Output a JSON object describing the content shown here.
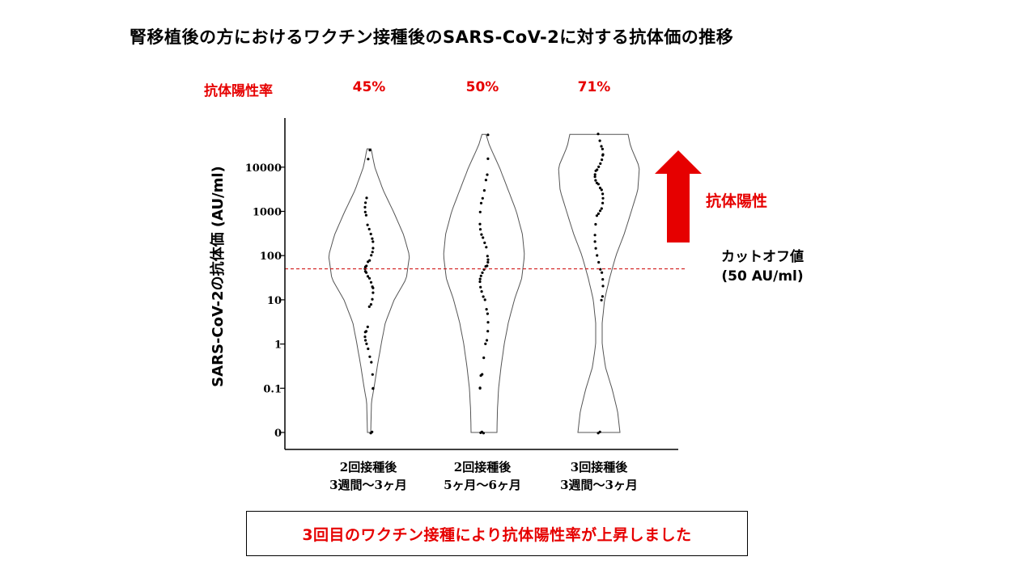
{
  "title": "腎移植後の方におけるワクチン接種後のSARS-CoV-2に対する抗体価の推移",
  "positivity_rate_label": "抗体陽性率",
  "positive_label": "抗体陽性",
  "cutoff_label_line1": "カットオフ値",
  "cutoff_label_line2": "(50 AU/ml)",
  "message": "3回目のワクチン接種により抗体陽性率が上昇しました",
  "colors": {
    "accent": "#e60000",
    "axis": "#000000",
    "violin": "#555555",
    "cutoff_line": "#cc0000"
  },
  "chart_data": {
    "type": "violin",
    "title": "腎移植後の方におけるワクチン接種後のSARS-CoV-2に対する抗体価の推移",
    "ylabel": "SARS-CoV-2の抗体価 (AU/ml)",
    "yscale": "log",
    "ylim": [
      0.01,
      60000
    ],
    "yticks": [
      {
        "value": 0.01,
        "label": "0"
      },
      {
        "value": 0.1,
        "label": "0.1"
      },
      {
        "value": 1,
        "label": "1"
      },
      {
        "value": 10,
        "label": "10"
      },
      {
        "value": 100,
        "label": "100"
      },
      {
        "value": 1000,
        "label": "1000"
      },
      {
        "value": 10000,
        "label": "10000"
      }
    ],
    "cutoff": 50,
    "groups": [
      {
        "label_line1": "2回接種後",
        "label_line2": "3週間〜3ヶ月",
        "positivity": "45%",
        "ymin": 0.01,
        "ymax": 26000,
        "width_profile": [
          [
            0.01,
            0.04
          ],
          [
            0.05,
            0.06
          ],
          [
            0.1,
            0.12
          ],
          [
            0.3,
            0.2
          ],
          [
            1,
            0.3
          ],
          [
            3,
            0.4
          ],
          [
            10,
            0.62
          ],
          [
            30,
            0.92
          ],
          [
            100,
            1.0
          ],
          [
            300,
            0.85
          ],
          [
            1000,
            0.6
          ],
          [
            3000,
            0.35
          ],
          [
            10000,
            0.14
          ],
          [
            26000,
            0.05
          ]
        ],
        "points": [
          0.01,
          0.01,
          0.1,
          0.1,
          0.2,
          0.4,
          0.5,
          0.8,
          1,
          1.2,
          1.5,
          1.8,
          2,
          2.4,
          7,
          8,
          10,
          15,
          18,
          20,
          25,
          30,
          35,
          40,
          45,
          50,
          55,
          60,
          70,
          80,
          100,
          120,
          150,
          200,
          250,
          300,
          400,
          500,
          800,
          1000,
          1200,
          1600,
          2000,
          15000,
          25000
        ]
      },
      {
        "label_line1": "2回接種後",
        "label_line2": "5ヶ月〜6ヶ月",
        "positivity": "50%",
        "ymin": 0.01,
        "ymax": 55000,
        "width_profile": [
          [
            0.01,
            0.32
          ],
          [
            0.03,
            0.33
          ],
          [
            0.1,
            0.36
          ],
          [
            0.3,
            0.42
          ],
          [
            1,
            0.5
          ],
          [
            3,
            0.6
          ],
          [
            10,
            0.75
          ],
          [
            30,
            0.93
          ],
          [
            100,
            1.0
          ],
          [
            300,
            0.95
          ],
          [
            1000,
            0.8
          ],
          [
            3000,
            0.6
          ],
          [
            10000,
            0.38
          ],
          [
            30000,
            0.14
          ],
          [
            55000,
            0.05
          ]
        ],
        "points": [
          0.01,
          0.01,
          0.01,
          0.1,
          0.1,
          0.2,
          0.2,
          0.5,
          1,
          1.2,
          2,
          3,
          5,
          6,
          10,
          12,
          15,
          20,
          25,
          30,
          35,
          40,
          50,
          55,
          60,
          70,
          80,
          100,
          150,
          200,
          250,
          300,
          400,
          500,
          1000,
          1500,
          2000,
          3000,
          5000,
          7000,
          15000,
          55000
        ]
      },
      {
        "label_line1": "3回接種後",
        "label_line2": "3週間〜3ヶ月",
        "positivity": "71%",
        "ymin": 0.01,
        "ymax": 55000,
        "width_profile": [
          [
            0.01,
            0.52
          ],
          [
            0.03,
            0.46
          ],
          [
            0.1,
            0.32
          ],
          [
            0.3,
            0.16
          ],
          [
            1,
            0.08
          ],
          [
            3,
            0.08
          ],
          [
            10,
            0.14
          ],
          [
            30,
            0.26
          ],
          [
            100,
            0.42
          ],
          [
            300,
            0.62
          ],
          [
            1000,
            0.8
          ],
          [
            3000,
            0.96
          ],
          [
            10000,
            1.0
          ],
          [
            30000,
            0.78
          ],
          [
            55000,
            0.72
          ]
        ],
        "points": [
          0.01,
          0.01,
          10,
          12,
          20,
          30,
          40,
          50,
          70,
          100,
          150,
          200,
          300,
          500,
          800,
          900,
          1000,
          1200,
          1500,
          2000,
          2500,
          3000,
          3500,
          4000,
          4500,
          5000,
          6000,
          7000,
          8000,
          9000,
          10000,
          12000,
          15000,
          18000,
          20000,
          25000,
          30000,
          40000,
          55000
        ]
      }
    ]
  }
}
